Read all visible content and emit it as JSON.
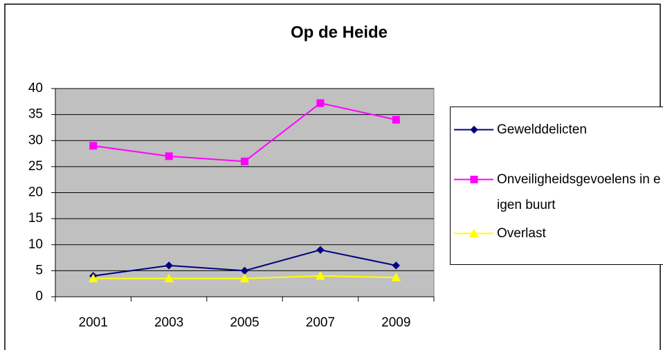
{
  "chart_data": {
    "type": "line",
    "title": "Op de Heide",
    "categories": [
      "2001",
      "2003",
      "2005",
      "2007",
      "2009"
    ],
    "series": [
      {
        "name": "Geweld­delicten",
        "color": "#000080",
        "marker": "diamond",
        "values": [
          4,
          6,
          5,
          9,
          6
        ]
      },
      {
        "name": "Onveiligheidsgevoelens in eigen buurt",
        "color": "#ff00ff",
        "marker": "square",
        "values": [
          29,
          27,
          26,
          37.2,
          34
        ]
      },
      {
        "name": "Overlast",
        "color": "#ffff00",
        "marker": "triangle",
        "values": [
          3.5,
          3.5,
          3.5,
          4,
          3.7
        ]
      }
    ],
    "ylim": [
      0,
      40
    ],
    "yticks": [
      0,
      5,
      10,
      15,
      20,
      25,
      30,
      35,
      40
    ],
    "grid": true,
    "legend": "right"
  }
}
